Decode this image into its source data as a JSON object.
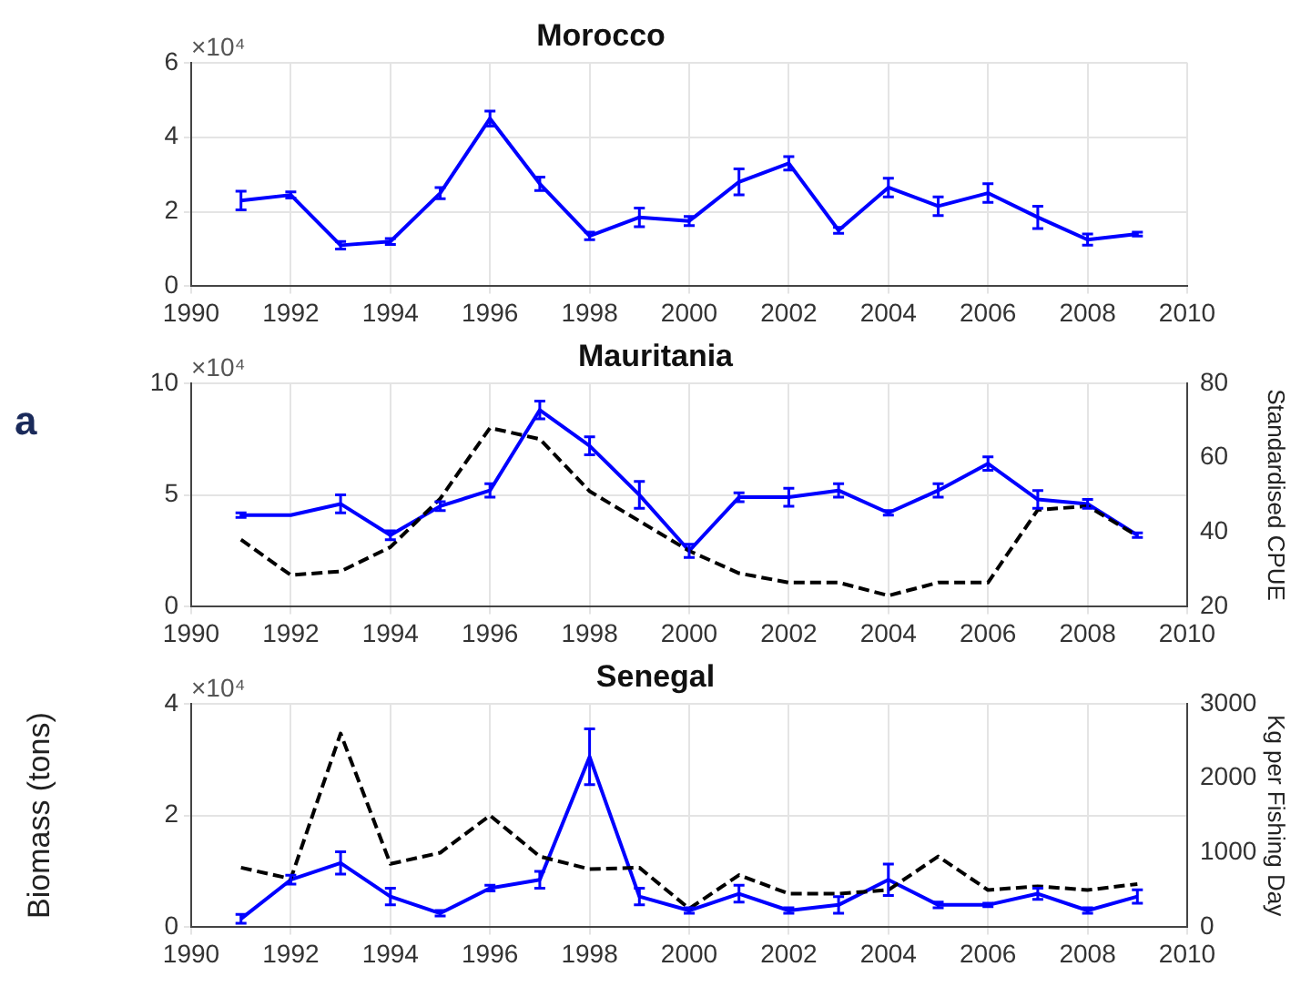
{
  "chart_data": [
    {
      "type": "line",
      "title": "Morocco",
      "annotations": [
        "×10⁴"
      ],
      "grid": true,
      "xlim": [
        1990,
        2010
      ],
      "xticks": [
        1990,
        1992,
        1994,
        1996,
        1998,
        2000,
        2002,
        2004,
        2006,
        2008,
        2010
      ],
      "ylim": [
        0,
        6
      ],
      "yticks": [
        0,
        2,
        4,
        6
      ],
      "x": [
        1991,
        1992,
        1993,
        1994,
        1995,
        1996,
        1997,
        1998,
        1999,
        2000,
        2001,
        2002,
        2003,
        2004,
        2005,
        2006,
        2007,
        2008,
        2009
      ],
      "series": [
        {
          "color": "#0000ff",
          "line_style": "solid",
          "values": [
            2.3,
            2.45,
            1.1,
            1.2,
            2.5,
            4.5,
            2.75,
            1.35,
            1.85,
            1.75,
            2.8,
            3.3,
            1.5,
            2.65,
            2.15,
            2.5,
            1.85,
            1.25,
            1.4
          ],
          "errors": [
            0.25,
            0.08,
            0.1,
            0.08,
            0.15,
            0.2,
            0.18,
            0.1,
            0.25,
            0.12,
            0.35,
            0.18,
            0.08,
            0.25,
            0.25,
            0.25,
            0.3,
            0.15,
            0.05
          ]
        }
      ]
    },
    {
      "type": "line",
      "title": "Mauritania",
      "y2label": "Standardised CPUE",
      "annotations": [
        "×10⁴",
        "a"
      ],
      "grid": true,
      "xlim": [
        1990,
        2010
      ],
      "xticks": [
        1990,
        1992,
        1994,
        1996,
        1998,
        2000,
        2002,
        2004,
        2006,
        2008,
        2010
      ],
      "ylim": [
        0,
        10
      ],
      "yticks": [
        0,
        5,
        10
      ],
      "y2lim": [
        20,
        80
      ],
      "y2ticks": [
        20,
        40,
        60,
        80
      ],
      "x": [
        1991,
        1992,
        1993,
        1994,
        1995,
        1996,
        1997,
        1998,
        1999,
        2000,
        2001,
        2002,
        2003,
        2004,
        2005,
        2006,
        2007,
        2008,
        2009
      ],
      "series": [
        {
          "color": "#000000",
          "line_style": "dashed",
          "axis": "y2",
          "values": [
            38,
            28.5,
            29.5,
            36,
            49,
            68,
            65,
            51,
            43,
            35,
            29,
            26.5,
            26.5,
            23,
            26.5,
            26.5,
            46,
            47,
            39
          ]
        },
        {
          "color": "#0000ff",
          "line_style": "solid",
          "values": [
            4.1,
            4.1,
            4.6,
            3.2,
            4.5,
            5.2,
            8.8,
            7.2,
            5,
            2.5,
            4.9,
            4.9,
            5.2,
            4.2,
            5.2,
            6.4,
            4.8,
            4.6,
            3.2
          ],
          "errors": [
            0.1,
            null,
            0.4,
            0.2,
            0.2,
            0.3,
            0.4,
            0.4,
            0.6,
            0.3,
            0.2,
            0.4,
            0.3,
            0.1,
            0.3,
            0.3,
            0.4,
            0.2,
            0.1
          ]
        }
      ]
    },
    {
      "type": "line",
      "title": "Senegal",
      "ylabel": "Biomass (tons)",
      "y2label": "Kg per Fishing Day",
      "annotations": [
        "×10⁴"
      ],
      "grid": true,
      "xlim": [
        1990,
        2010
      ],
      "xticks": [
        1990,
        1992,
        1994,
        1996,
        1998,
        2000,
        2002,
        2004,
        2006,
        2008,
        2010
      ],
      "ylim": [
        0,
        4
      ],
      "yticks": [
        0,
        2,
        4
      ],
      "y2lim": [
        0,
        3000
      ],
      "y2ticks": [
        0,
        1000,
        2000,
        3000
      ],
      "x": [
        1991,
        1992,
        1993,
        1994,
        1995,
        1996,
        1997,
        1998,
        1999,
        2000,
        2001,
        2002,
        2003,
        2004,
        2005,
        2006,
        2007,
        2008,
        2009
      ],
      "series": [
        {
          "color": "#000000",
          "line_style": "dashed",
          "axis": "y2",
          "values": [
            800,
            650,
            2600,
            850,
            1000,
            1500,
            950,
            780,
            800,
            250,
            700,
            450,
            450,
            500,
            950,
            500,
            550,
            500,
            580
          ]
        },
        {
          "color": "#0000ff",
          "line_style": "solid",
          "values": [
            0.15,
            0.85,
            1.15,
            0.55,
            0.25,
            0.7,
            0.85,
            3.05,
            0.55,
            0.3,
            0.6,
            0.3,
            0.4,
            0.85,
            0.4,
            0.4,
            0.6,
            0.3,
            0.55
          ],
          "errors": [
            0.08,
            0.08,
            0.2,
            0.15,
            0.05,
            0.05,
            0.15,
            0.5,
            0.15,
            0.05,
            0.15,
            0.05,
            0.15,
            0.28,
            0.05,
            0.03,
            0.1,
            0.05,
            0.12
          ]
        }
      ]
    }
  ]
}
